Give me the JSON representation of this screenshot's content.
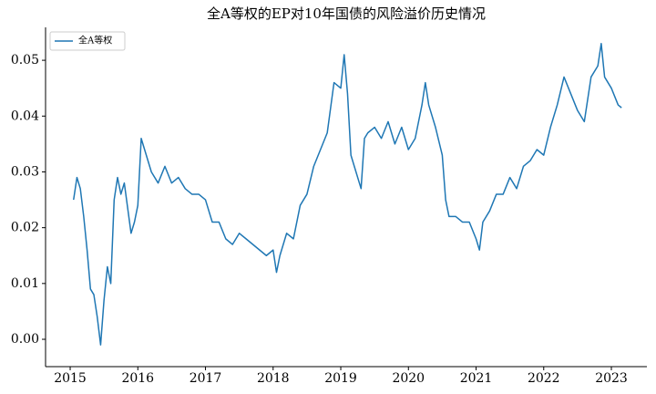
{
  "chart_data": {
    "type": "line",
    "title": "全A等权的EP对10年国债的风险溢价历史情况",
    "x": [
      2015.05,
      2015.1,
      2015.15,
      2015.2,
      2015.25,
      2015.3,
      2015.35,
      2015.4,
      2015.45,
      2015.5,
      2015.55,
      2015.6,
      2015.65,
      2015.7,
      2015.75,
      2015.8,
      2015.9,
      2015.95,
      2016.0,
      2016.05,
      2016.1,
      2016.2,
      2016.3,
      2016.4,
      2016.5,
      2016.6,
      2016.7,
      2016.8,
      2016.9,
      2017.0,
      2017.1,
      2017.2,
      2017.3,
      2017.4,
      2017.5,
      2017.6,
      2017.7,
      2017.8,
      2017.9,
      2018.0,
      2018.05,
      2018.1,
      2018.2,
      2018.3,
      2018.4,
      2018.5,
      2018.6,
      2018.7,
      2018.8,
      2018.9,
      2019.0,
      2019.05,
      2019.1,
      2019.15,
      2019.2,
      2019.3,
      2019.35,
      2019.4,
      2019.5,
      2019.6,
      2019.7,
      2019.8,
      2019.9,
      2020.0,
      2020.1,
      2020.2,
      2020.25,
      2020.3,
      2020.4,
      2020.5,
      2020.55,
      2020.6,
      2020.7,
      2020.8,
      2020.9,
      2021.0,
      2021.05,
      2021.1,
      2021.2,
      2021.3,
      2021.4,
      2021.5,
      2021.6,
      2021.7,
      2021.8,
      2021.9,
      2022.0,
      2022.1,
      2022.2,
      2022.3,
      2022.4,
      2022.5,
      2022.6,
      2022.7,
      2022.8,
      2022.85,
      2022.9,
      2023.0,
      2023.1,
      2023.15
    ],
    "series": [
      {
        "name": "全A等权",
        "color": "#1f77b4",
        "values": [
          0.025,
          0.029,
          0.027,
          0.022,
          0.016,
          0.009,
          0.008,
          0.004,
          -0.001,
          0.007,
          0.013,
          0.01,
          0.025,
          0.029,
          0.026,
          0.028,
          0.019,
          0.021,
          0.024,
          0.036,
          0.034,
          0.03,
          0.028,
          0.031,
          0.028,
          0.029,
          0.027,
          0.026,
          0.026,
          0.025,
          0.021,
          0.021,
          0.018,
          0.017,
          0.019,
          0.018,
          0.017,
          0.016,
          0.015,
          0.016,
          0.012,
          0.015,
          0.019,
          0.018,
          0.024,
          0.026,
          0.031,
          0.034,
          0.037,
          0.046,
          0.045,
          0.051,
          0.044,
          0.033,
          0.031,
          0.027,
          0.036,
          0.037,
          0.038,
          0.036,
          0.039,
          0.035,
          0.038,
          0.034,
          0.036,
          0.042,
          0.046,
          0.042,
          0.038,
          0.033,
          0.025,
          0.022,
          0.022,
          0.021,
          0.021,
          0.018,
          0.016,
          0.021,
          0.023,
          0.026,
          0.026,
          0.029,
          0.027,
          0.031,
          0.032,
          0.034,
          0.033,
          0.038,
          0.042,
          0.047,
          0.044,
          0.041,
          0.039,
          0.047,
          0.049,
          0.053,
          0.047,
          0.045,
          0.042,
          0.0415
        ]
      }
    ],
    "xlim": [
      2014.636,
      2023.525
    ],
    "xticks": [
      2015,
      2016,
      2017,
      2018,
      2019,
      2020,
      2021,
      2022,
      2023
    ],
    "ylim": [
      -0.0049,
      0.0559
    ],
    "yticks": [
      {
        "value": 0,
        "label": "0.00"
      },
      0.01,
      0.02,
      0.03,
      0.04,
      0.05
    ],
    "legend": "upper left"
  }
}
